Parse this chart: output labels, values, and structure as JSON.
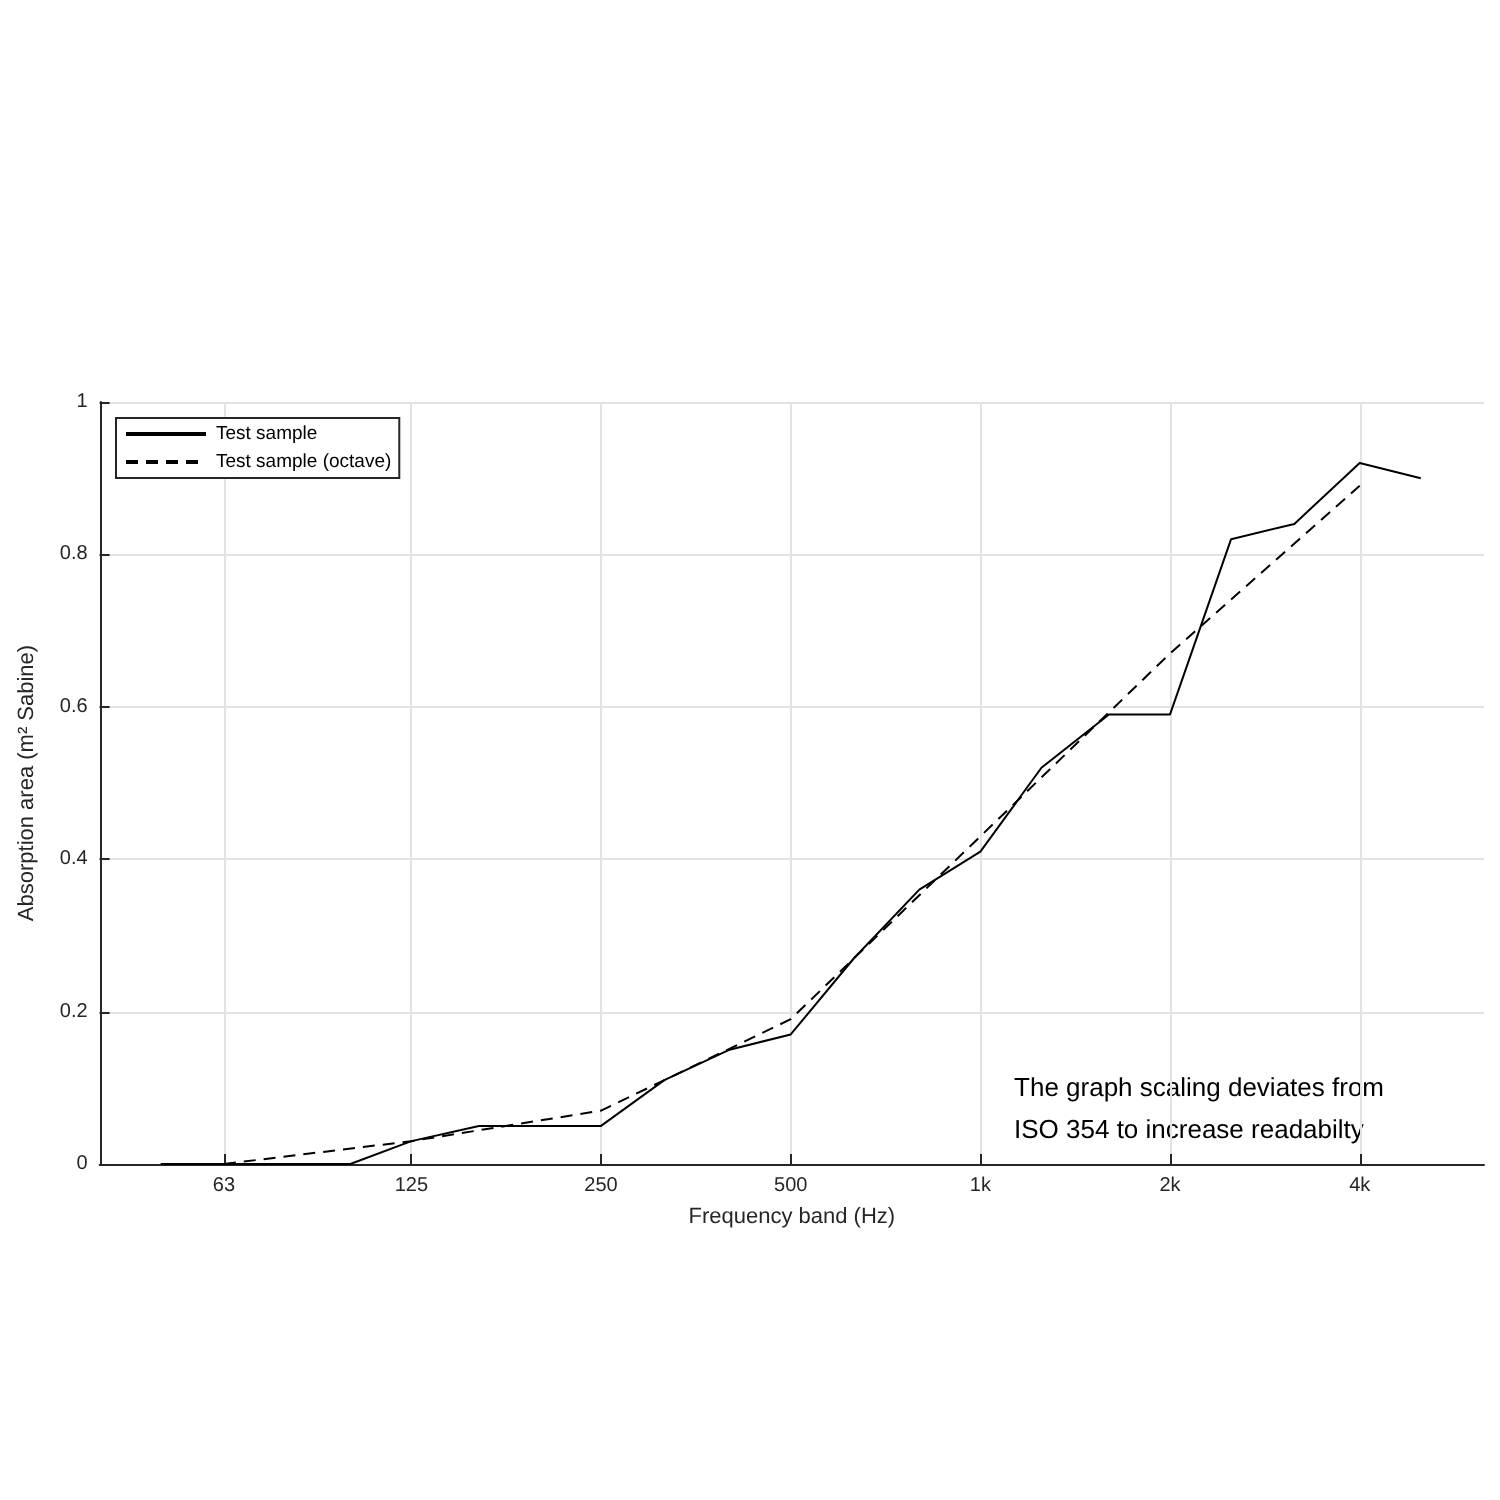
{
  "chart_data": {
    "type": "line",
    "xlabel": "Frequency band (Hz)",
    "ylabel": "Absorption area (m² Sabine)",
    "annotations": [
      "The graph scaling deviates from\nISO 354 to increase readabilty"
    ],
    "log": "x",
    "xlim": [
      40,
      6300
    ],
    "xticks": [
      63,
      125,
      250,
      500,
      {
        "value": 1000,
        "label": "1k"
      },
      {
        "value": 2000,
        "label": "2k"
      },
      {
        "value": 4000,
        "label": "4k"
      }
    ],
    "ylim": [
      0,
      1
    ],
    "yticks": [
      0,
      0.2,
      0.4,
      0.6,
      0.8,
      1
    ],
    "grid": true,
    "legend": "top left",
    "series": [
      {
        "name": "Test sample",
        "color": "#000000",
        "line_style": "solid",
        "x": [
          50,
          63,
          80,
          100,
          125,
          160,
          200,
          250,
          315,
          400,
          500,
          630,
          800,
          1000,
          1250,
          1600,
          2000,
          2500,
          3150,
          4000,
          5000
        ],
        "values": [
          0,
          0,
          0,
          0,
          0.03,
          0.05,
          0.05,
          0.05,
          0.11,
          0.15,
          0.17,
          0.27,
          0.36,
          0.41,
          0.52,
          0.59,
          0.59,
          0.82,
          0.84,
          0.92,
          0.9
        ]
      },
      {
        "name": "Test sample (octave)",
        "color": "#000000",
        "line_style": "dashed",
        "x": [
          63,
          125,
          250,
          500,
          1000,
          2000,
          4000
        ],
        "values": [
          0,
          0.03,
          0.07,
          0.19,
          0.43,
          0.67,
          0.89
        ]
      }
    ]
  }
}
